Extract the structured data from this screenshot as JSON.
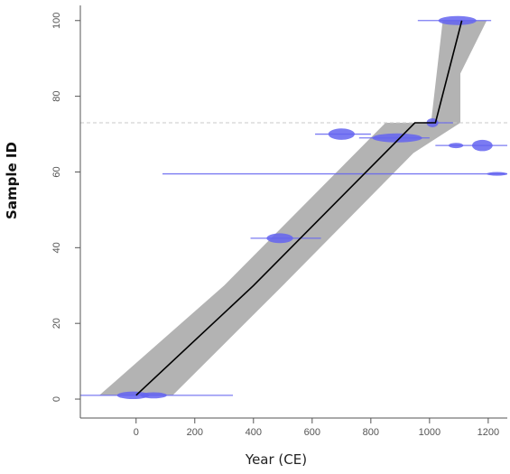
{
  "chart_data": {
    "type": "scatter",
    "title": "",
    "xlabel": "Year (CE)",
    "ylabel": "Sample ID",
    "xlim": [
      -190,
      1265
    ],
    "ylim": [
      -5,
      104
    ],
    "xticks": [
      0,
      200,
      400,
      600,
      800,
      1000,
      1200
    ],
    "yticks": [
      0,
      20,
      40,
      60,
      80,
      100
    ],
    "grid": false,
    "legend": "none",
    "colors": {
      "envelope": "#b3b3b3",
      "median_line": "#000000",
      "date_distributions": "#6464f0",
      "hiatus_line": "#c8c8c8"
    },
    "hiatus_sample_id": 73,
    "age_model": {
      "median": [
        {
          "x": 0,
          "y": 1
        },
        {
          "x": 400,
          "y": 30
        },
        {
          "x": 950,
          "y": 73
        },
        {
          "x": 1020,
          "y": 73
        },
        {
          "x": 1110,
          "y": 100
        }
      ],
      "upper": [
        {
          "x": 125,
          "y": 1
        },
        {
          "x": 500,
          "y": 30
        },
        {
          "x": 945,
          "y": 65
        },
        {
          "x": 1105,
          "y": 73
        },
        {
          "x": 1105,
          "y": 86
        },
        {
          "x": 1195,
          "y": 100
        }
      ],
      "lower": [
        {
          "x": 1045,
          "y": 100
        },
        {
          "x": 1005,
          "y": 73
        },
        {
          "x": 850,
          "y": 73
        },
        {
          "x": 300,
          "y": 30
        },
        {
          "x": -125,
          "y": 1
        }
      ]
    },
    "date_distributions": [
      {
        "sample_id": 1,
        "range": [
          -190,
          330
        ],
        "blobs": [
          {
            "x": -10,
            "width": 110,
            "half_height": 1.0
          },
          {
            "x": 60,
            "width": 90,
            "half_height": 0.8
          }
        ]
      },
      {
        "sample_id": 42.5,
        "range": [
          390,
          630
        ],
        "blobs": [
          {
            "x": 490,
            "width": 90,
            "half_height": 1.3
          }
        ]
      },
      {
        "sample_id": 59.5,
        "range": [
          90,
          1265
        ],
        "blobs": [
          {
            "x": 1230,
            "width": 70,
            "half_height": 0.5
          }
        ]
      },
      {
        "sample_id": 70,
        "range": [
          610,
          800
        ],
        "blobs": [
          {
            "x": 700,
            "width": 90,
            "half_height": 1.5
          }
        ]
      },
      {
        "sample_id": 69,
        "range": [
          760,
          1000
        ],
        "blobs": [
          {
            "x": 890,
            "width": 170,
            "half_height": 1.2
          }
        ]
      },
      {
        "sample_id": 73,
        "range": [
          980,
          1080
        ],
        "blobs": [
          {
            "x": 1010,
            "width": 40,
            "half_height": 1.2
          }
        ]
      },
      {
        "sample_id": 67,
        "range": [
          1020,
          1265
        ],
        "blobs": [
          {
            "x": 1180,
            "width": 70,
            "half_height": 1.5
          },
          {
            "x": 1090,
            "width": 50,
            "half_height": 0.7
          }
        ]
      },
      {
        "sample_id": 100,
        "range": [
          960,
          1210
        ],
        "blobs": [
          {
            "x": 1095,
            "width": 130,
            "half_height": 1.2
          }
        ]
      }
    ]
  }
}
